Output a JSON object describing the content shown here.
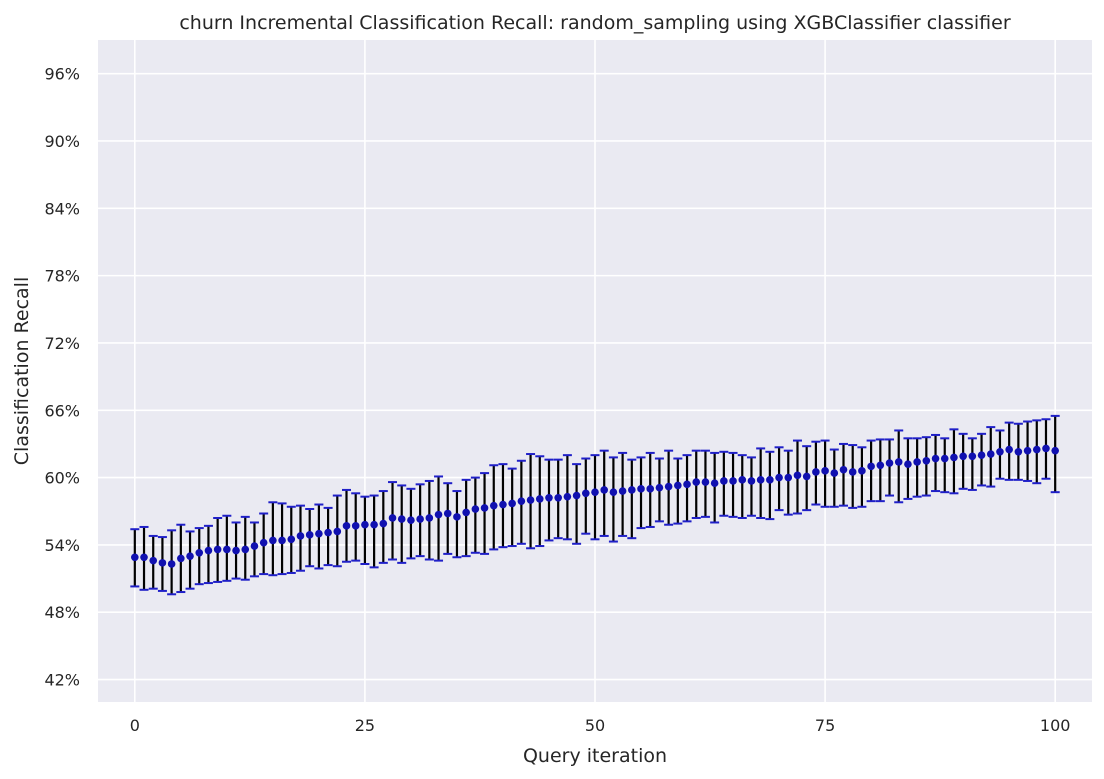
{
  "chart_data": {
    "type": "scatter",
    "title": "churn Incremental Classification Recall: random_sampling using XGBClassifier classifier",
    "xlabel": "Query iteration",
    "ylabel": "Classification Recall",
    "xlim": [
      -4,
      104
    ],
    "ylim": [
      40,
      99
    ],
    "xticks": [
      0,
      25,
      50,
      75,
      100
    ],
    "xtick_labels": [
      "0",
      "25",
      "50",
      "75",
      "100"
    ],
    "yticks": [
      42,
      48,
      54,
      60,
      66,
      72,
      78,
      84,
      90,
      96
    ],
    "ytick_labels": [
      "42%",
      "48%",
      "54%",
      "60%",
      "66%",
      "72%",
      "78%",
      "84%",
      "90%",
      "96%"
    ],
    "grid": true,
    "series": [
      {
        "error_bars": true,
        "points": [
          {
            "x": 0,
            "y": 52.9,
            "lo": 50.3,
            "hi": 55.4
          },
          {
            "x": 1,
            "y": 52.9,
            "lo": 50.0,
            "hi": 55.6
          },
          {
            "x": 2,
            "y": 52.6,
            "lo": 50.1,
            "hi": 54.8
          },
          {
            "x": 3,
            "y": 52.4,
            "lo": 49.9,
            "hi": 54.7
          },
          {
            "x": 4,
            "y": 52.3,
            "lo": 49.6,
            "hi": 55.3
          },
          {
            "x": 5,
            "y": 52.8,
            "lo": 49.8,
            "hi": 55.8
          },
          {
            "x": 6,
            "y": 53.0,
            "lo": 50.1,
            "hi": 55.2
          },
          {
            "x": 7,
            "y": 53.3,
            "lo": 50.5,
            "hi": 55.5
          },
          {
            "x": 8,
            "y": 53.5,
            "lo": 50.6,
            "hi": 55.7
          },
          {
            "x": 9,
            "y": 53.6,
            "lo": 50.7,
            "hi": 56.4
          },
          {
            "x": 10,
            "y": 53.6,
            "lo": 50.8,
            "hi": 56.6
          },
          {
            "x": 11,
            "y": 53.5,
            "lo": 51.0,
            "hi": 56.0
          },
          {
            "x": 12,
            "y": 53.6,
            "lo": 50.9,
            "hi": 56.5
          },
          {
            "x": 13,
            "y": 53.9,
            "lo": 51.2,
            "hi": 56.0
          },
          {
            "x": 14,
            "y": 54.2,
            "lo": 51.4,
            "hi": 56.8
          },
          {
            "x": 15,
            "y": 54.4,
            "lo": 51.3,
            "hi": 57.8
          },
          {
            "x": 16,
            "y": 54.4,
            "lo": 51.4,
            "hi": 57.7
          },
          {
            "x": 17,
            "y": 54.5,
            "lo": 51.5,
            "hi": 57.4
          },
          {
            "x": 18,
            "y": 54.8,
            "lo": 51.7,
            "hi": 57.5
          },
          {
            "x": 19,
            "y": 54.9,
            "lo": 52.1,
            "hi": 57.2
          },
          {
            "x": 20,
            "y": 55.0,
            "lo": 51.9,
            "hi": 57.6
          },
          {
            "x": 21,
            "y": 55.1,
            "lo": 52.2,
            "hi": 57.3
          },
          {
            "x": 22,
            "y": 55.2,
            "lo": 52.1,
            "hi": 58.4
          },
          {
            "x": 23,
            "y": 55.7,
            "lo": 52.5,
            "hi": 58.9
          },
          {
            "x": 24,
            "y": 55.7,
            "lo": 52.6,
            "hi": 58.6
          },
          {
            "x": 25,
            "y": 55.8,
            "lo": 52.3,
            "hi": 58.3
          },
          {
            "x": 26,
            "y": 55.8,
            "lo": 52.0,
            "hi": 58.4
          },
          {
            "x": 27,
            "y": 55.9,
            "lo": 52.4,
            "hi": 58.8
          },
          {
            "x": 28,
            "y": 56.4,
            "lo": 52.7,
            "hi": 59.6
          },
          {
            "x": 29,
            "y": 56.3,
            "lo": 52.4,
            "hi": 59.3
          },
          {
            "x": 30,
            "y": 56.2,
            "lo": 52.8,
            "hi": 59.0
          },
          {
            "x": 31,
            "y": 56.3,
            "lo": 53.0,
            "hi": 59.4
          },
          {
            "x": 32,
            "y": 56.4,
            "lo": 52.7,
            "hi": 59.7
          },
          {
            "x": 33,
            "y": 56.7,
            "lo": 52.6,
            "hi": 60.1
          },
          {
            "x": 34,
            "y": 56.8,
            "lo": 53.2,
            "hi": 59.5
          },
          {
            "x": 35,
            "y": 56.5,
            "lo": 52.9,
            "hi": 58.8
          },
          {
            "x": 36,
            "y": 56.9,
            "lo": 53.0,
            "hi": 59.8
          },
          {
            "x": 37,
            "y": 57.2,
            "lo": 53.3,
            "hi": 60.0
          },
          {
            "x": 38,
            "y": 57.3,
            "lo": 53.2,
            "hi": 60.4
          },
          {
            "x": 39,
            "y": 57.5,
            "lo": 53.6,
            "hi": 61.1
          },
          {
            "x": 40,
            "y": 57.6,
            "lo": 53.8,
            "hi": 61.2
          },
          {
            "x": 41,
            "y": 57.7,
            "lo": 53.9,
            "hi": 60.8
          },
          {
            "x": 42,
            "y": 57.9,
            "lo": 54.1,
            "hi": 61.5
          },
          {
            "x": 43,
            "y": 58.0,
            "lo": 53.7,
            "hi": 62.1
          },
          {
            "x": 44,
            "y": 58.1,
            "lo": 53.9,
            "hi": 61.9
          },
          {
            "x": 45,
            "y": 58.2,
            "lo": 54.4,
            "hi": 61.6
          },
          {
            "x": 46,
            "y": 58.2,
            "lo": 54.6,
            "hi": 61.6
          },
          {
            "x": 47,
            "y": 58.3,
            "lo": 54.5,
            "hi": 62.0
          },
          {
            "x": 48,
            "y": 58.4,
            "lo": 54.1,
            "hi": 61.2
          },
          {
            "x": 49,
            "y": 58.6,
            "lo": 55.0,
            "hi": 61.7
          },
          {
            "x": 50,
            "y": 58.7,
            "lo": 54.5,
            "hi": 62.0
          },
          {
            "x": 51,
            "y": 58.9,
            "lo": 54.8,
            "hi": 62.4
          },
          {
            "x": 52,
            "y": 58.7,
            "lo": 54.3,
            "hi": 61.8
          },
          {
            "x": 53,
            "y": 58.8,
            "lo": 54.8,
            "hi": 62.2
          },
          {
            "x": 54,
            "y": 58.9,
            "lo": 54.6,
            "hi": 61.6
          },
          {
            "x": 55,
            "y": 59.0,
            "lo": 55.5,
            "hi": 61.8
          },
          {
            "x": 56,
            "y": 59.0,
            "lo": 55.6,
            "hi": 62.2
          },
          {
            "x": 57,
            "y": 59.1,
            "lo": 56.1,
            "hi": 61.7
          },
          {
            "x": 58,
            "y": 59.2,
            "lo": 55.8,
            "hi": 62.4
          },
          {
            "x": 59,
            "y": 59.3,
            "lo": 55.9,
            "hi": 61.7
          },
          {
            "x": 60,
            "y": 59.4,
            "lo": 56.1,
            "hi": 62.0
          },
          {
            "x": 61,
            "y": 59.6,
            "lo": 56.4,
            "hi": 62.4
          },
          {
            "x": 62,
            "y": 59.6,
            "lo": 56.5,
            "hi": 62.4
          },
          {
            "x": 63,
            "y": 59.5,
            "lo": 56.0,
            "hi": 62.2
          },
          {
            "x": 64,
            "y": 59.7,
            "lo": 56.6,
            "hi": 62.3
          },
          {
            "x": 65,
            "y": 59.7,
            "lo": 56.5,
            "hi": 62.2
          },
          {
            "x": 66,
            "y": 59.8,
            "lo": 56.4,
            "hi": 62.0
          },
          {
            "x": 67,
            "y": 59.7,
            "lo": 56.6,
            "hi": 61.8
          },
          {
            "x": 68,
            "y": 59.8,
            "lo": 56.4,
            "hi": 62.6
          },
          {
            "x": 69,
            "y": 59.8,
            "lo": 56.3,
            "hi": 62.3
          },
          {
            "x": 70,
            "y": 60.0,
            "lo": 57.1,
            "hi": 62.7
          },
          {
            "x": 71,
            "y": 60.0,
            "lo": 56.7,
            "hi": 62.4
          },
          {
            "x": 72,
            "y": 60.2,
            "lo": 56.8,
            "hi": 63.3
          },
          {
            "x": 73,
            "y": 60.1,
            "lo": 57.1,
            "hi": 62.8
          },
          {
            "x": 74,
            "y": 60.5,
            "lo": 57.6,
            "hi": 63.2
          },
          {
            "x": 75,
            "y": 60.6,
            "lo": 57.4,
            "hi": 63.3
          },
          {
            "x": 76,
            "y": 60.4,
            "lo": 57.4,
            "hi": 62.5
          },
          {
            "x": 77,
            "y": 60.7,
            "lo": 57.5,
            "hi": 63.0
          },
          {
            "x": 78,
            "y": 60.5,
            "lo": 57.3,
            "hi": 62.9
          },
          {
            "x": 79,
            "y": 60.6,
            "lo": 57.4,
            "hi": 62.7
          },
          {
            "x": 80,
            "y": 61.0,
            "lo": 57.9,
            "hi": 63.3
          },
          {
            "x": 81,
            "y": 61.1,
            "lo": 57.9,
            "hi": 63.4
          },
          {
            "x": 82,
            "y": 61.3,
            "lo": 58.4,
            "hi": 63.4
          },
          {
            "x": 83,
            "y": 61.4,
            "lo": 57.8,
            "hi": 64.2
          },
          {
            "x": 84,
            "y": 61.2,
            "lo": 58.1,
            "hi": 63.5
          },
          {
            "x": 85,
            "y": 61.4,
            "lo": 58.3,
            "hi": 63.5
          },
          {
            "x": 86,
            "y": 61.5,
            "lo": 58.4,
            "hi": 63.6
          },
          {
            "x": 87,
            "y": 61.7,
            "lo": 58.8,
            "hi": 63.8
          },
          {
            "x": 88,
            "y": 61.7,
            "lo": 58.7,
            "hi": 63.5
          },
          {
            "x": 89,
            "y": 61.8,
            "lo": 58.6,
            "hi": 64.3
          },
          {
            "x": 90,
            "y": 61.9,
            "lo": 59.0,
            "hi": 63.9
          },
          {
            "x": 91,
            "y": 61.9,
            "lo": 58.9,
            "hi": 63.5
          },
          {
            "x": 92,
            "y": 62.0,
            "lo": 59.3,
            "hi": 63.9
          },
          {
            "x": 93,
            "y": 62.1,
            "lo": 59.2,
            "hi": 64.5
          },
          {
            "x": 94,
            "y": 62.3,
            "lo": 59.9,
            "hi": 64.2
          },
          {
            "x": 95,
            "y": 62.5,
            "lo": 59.8,
            "hi": 64.9
          },
          {
            "x": 96,
            "y": 62.3,
            "lo": 59.8,
            "hi": 64.8
          },
          {
            "x": 97,
            "y": 62.4,
            "lo": 59.7,
            "hi": 65.0
          },
          {
            "x": 98,
            "y": 62.5,
            "lo": 59.5,
            "hi": 65.1
          },
          {
            "x": 99,
            "y": 62.6,
            "lo": 59.9,
            "hi": 65.2
          },
          {
            "x": 100,
            "y": 62.4,
            "lo": 58.7,
            "hi": 65.5
          }
        ]
      }
    ],
    "colors": {
      "background": "#eaeaf2",
      "grid": "#ffffff",
      "error_bar": "#000000",
      "cap": "#1f1fc8",
      "marker": "#1010b0"
    }
  }
}
